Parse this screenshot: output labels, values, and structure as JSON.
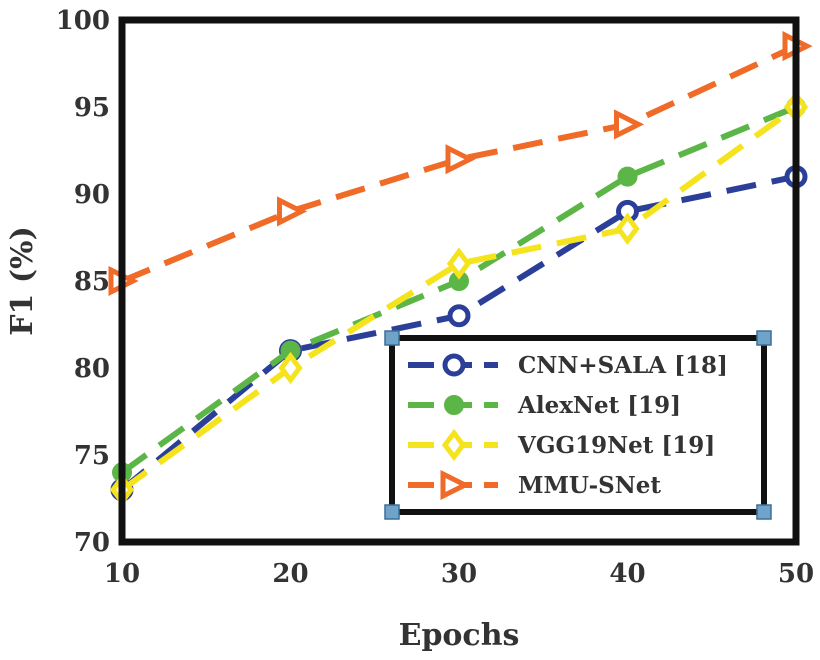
{
  "chart_data": {
    "type": "line",
    "title": "",
    "xlabel": "Epochs",
    "ylabel": "F1 (%)",
    "x": [
      10,
      20,
      30,
      40,
      50
    ],
    "xlim": [
      10,
      50
    ],
    "ylim": [
      70,
      100
    ],
    "xticks": [
      "10",
      "20",
      "30",
      "40",
      "50"
    ],
    "yticks": [
      "70",
      "75",
      "80",
      "85",
      "90",
      "95",
      "100"
    ],
    "grid": false,
    "legend_position": "bottom-right",
    "series": [
      {
        "name": "CNN+SALA [18]",
        "values": [
          73,
          81,
          83,
          89,
          91
        ],
        "color": "#2b3f99",
        "marker": "open-circle"
      },
      {
        "name": "AlexNet [19]",
        "values": [
          74,
          81,
          85,
          91,
          95
        ],
        "color": "#5cb547",
        "marker": "filled-circle"
      },
      {
        "name": "VGG19Net [19]",
        "values": [
          73,
          80,
          86,
          88,
          95
        ],
        "color": "#f5e31d",
        "marker": "open-diamond"
      },
      {
        "name": "MMU-SNet",
        "values": [
          85,
          89,
          92,
          94,
          98.5
        ],
        "color": "#f06a28",
        "marker": "open-triangle-right"
      }
    ]
  }
}
